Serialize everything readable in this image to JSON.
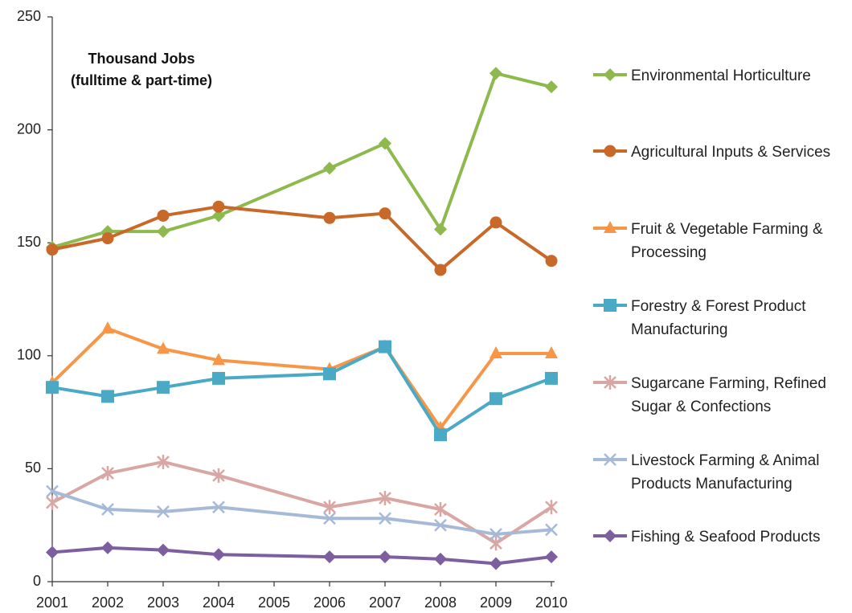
{
  "chart_data": {
    "type": "line",
    "annotation": [
      "Thousand Jobs",
      "(fulltime & part-time)"
    ],
    "categories": [
      "2001",
      "2002",
      "2003",
      "2004",
      "2005",
      "2006",
      "2007",
      "2008",
      "2009",
      "2010"
    ],
    "x": [
      2001,
      2002,
      2003,
      2004,
      2006,
      2007,
      2008,
      2009,
      2010
    ],
    "ylim": [
      0,
      250
    ],
    "yticks": [
      0,
      50,
      100,
      150,
      200,
      250
    ],
    "grid": false,
    "legend_position": "right",
    "series": [
      {
        "name": "Environmental Horticulture",
        "legend_lines": [
          "Environmental Horticulture"
        ],
        "color": "#8db94d",
        "marker": "diamond",
        "values": [
          148,
          155,
          155,
          162,
          183,
          194,
          156,
          225,
          219
        ]
      },
      {
        "name": "Agricultural Inputs & Services",
        "legend_lines": [
          "Agricultural Inputs & Services"
        ],
        "color": "#c8692a",
        "marker": "circle",
        "values": [
          147,
          152,
          162,
          166,
          161,
          163,
          138,
          159,
          142
        ]
      },
      {
        "name": "Fruit & Vegetable Farming & Processing",
        "legend_lines": [
          "Fruit & Vegetable Farming &",
          "Processing"
        ],
        "color": "#f79646",
        "marker": "triangle",
        "values": [
          88,
          112,
          103,
          98,
          94,
          104,
          68,
          101,
          101
        ]
      },
      {
        "name": "Forestry & Forest Product Manufacturing",
        "legend_lines": [
          "Forestry & Forest Product",
          "Manufacturing"
        ],
        "color": "#4aaac6",
        "marker": "square",
        "values": [
          86,
          82,
          86,
          90,
          92,
          104,
          65,
          81,
          90
        ]
      },
      {
        "name": "Sugarcane Farming, Refined Sugar & Confections",
        "legend_lines": [
          "Sugarcane Farming, Refined",
          "Sugar & Confections"
        ],
        "color": "#d9a7a3",
        "marker": "star",
        "values": [
          35,
          48,
          53,
          47,
          33,
          37,
          32,
          17,
          33
        ]
      },
      {
        "name": "Livestock Farming & Animal Products Manufacturing",
        "legend_lines": [
          "Livestock Farming & Animal",
          "Products Manufacturing"
        ],
        "color": "#a6bad7",
        "marker": "x",
        "values": [
          40,
          32,
          31,
          33,
          28,
          28,
          25,
          21,
          23
        ]
      },
      {
        "name": "Fishing & Seafood Products",
        "legend_lines": [
          "Fishing & Seafood Products"
        ],
        "color": "#7d5fa0",
        "marker": "diamond",
        "values": [
          13,
          15,
          14,
          12,
          11,
          11,
          10,
          8,
          11
        ]
      }
    ]
  }
}
